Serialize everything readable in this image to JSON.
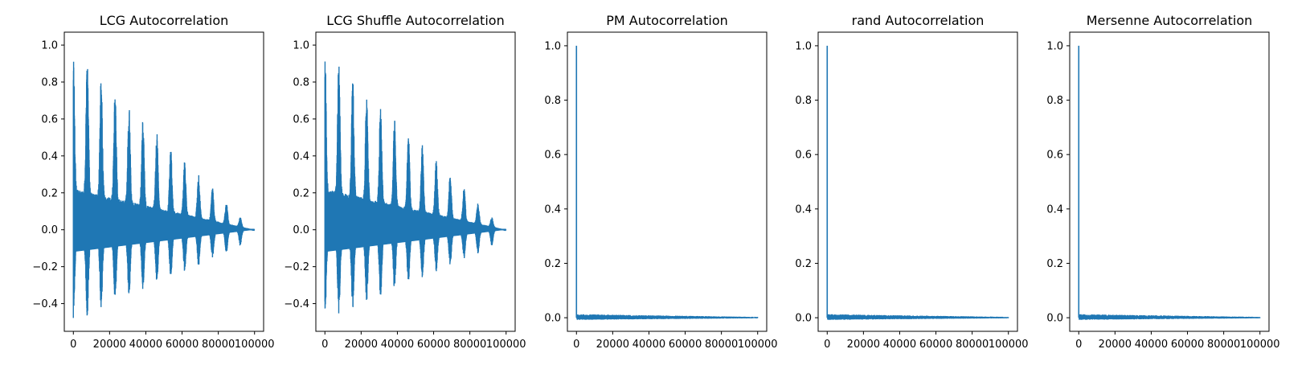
{
  "chart_data": [
    {
      "type": "line",
      "title": "LCG Autocorrelation",
      "xlabel": "",
      "ylabel": "",
      "xlim": [
        -5000,
        105000
      ],
      "ylim": [
        -0.55,
        1.07
      ],
      "xticks": [
        0,
        20000,
        40000,
        60000,
        80000,
        100000
      ],
      "xtick_labels": [
        "0",
        "20000",
        "40000",
        "60000",
        "80000",
        "100000"
      ],
      "yticks": [
        -0.4,
        -0.2,
        0.0,
        0.2,
        0.4,
        0.6,
        0.8,
        1.0
      ],
      "ytick_labels": [
        "−0.4",
        "−0.2",
        "0.0",
        "0.2",
        "0.4",
        "0.6",
        "0.8",
        "1.0"
      ],
      "series": [
        {
          "color": "#1f77b4",
          "envelope_x": [
            0,
            7700,
            15300,
            23000,
            30700,
            38300,
            46000,
            53600,
            61300,
            69000,
            76600,
            84300,
            92000,
            100000
          ],
          "upper": [
            1.0,
            0.92,
            0.84,
            0.76,
            0.69,
            0.61,
            0.53,
            0.46,
            0.38,
            0.3,
            0.23,
            0.15,
            0.07,
            0.0
          ],
          "lower": [
            -0.5,
            -0.47,
            -0.43,
            -0.4,
            -0.37,
            -0.33,
            -0.3,
            -0.27,
            -0.23,
            -0.2,
            -0.16,
            -0.13,
            -0.09,
            0.0
          ]
        }
      ]
    },
    {
      "type": "line",
      "title": "LCG Shuffle Autocorrelation",
      "xlabel": "",
      "ylabel": "",
      "xlim": [
        -5000,
        105000
      ],
      "ylim": [
        -0.55,
        1.07
      ],
      "xticks": [
        0,
        20000,
        40000,
        60000,
        80000,
        100000
      ],
      "xtick_labels": [
        "0",
        "20000",
        "40000",
        "60000",
        "80000",
        "100000"
      ],
      "yticks": [
        -0.4,
        -0.2,
        0.0,
        0.2,
        0.4,
        0.6,
        0.8,
        1.0
      ],
      "ytick_labels": [
        "−0.4",
        "−0.2",
        "0.0",
        "0.2",
        "0.4",
        "0.6",
        "0.8",
        "1.0"
      ],
      "series": [
        {
          "color": "#1f77b4",
          "envelope_x": [
            0,
            7700,
            15300,
            23000,
            30700,
            38300,
            46000,
            53600,
            61300,
            69000,
            76600,
            84300,
            92000,
            100000
          ],
          "upper": [
            1.0,
            0.92,
            0.84,
            0.76,
            0.69,
            0.61,
            0.53,
            0.46,
            0.38,
            0.3,
            0.23,
            0.15,
            0.07,
            0.0
          ],
          "lower": [
            -0.5,
            -0.47,
            -0.43,
            -0.4,
            -0.37,
            -0.33,
            -0.3,
            -0.27,
            -0.23,
            -0.2,
            -0.16,
            -0.13,
            -0.09,
            0.0
          ]
        }
      ]
    },
    {
      "type": "line",
      "title": "PM Autocorrelation",
      "xlabel": "",
      "ylabel": "",
      "xlim": [
        -5000,
        105000
      ],
      "ylim": [
        -0.05,
        1.05
      ],
      "xticks": [
        0,
        20000,
        40000,
        60000,
        80000,
        100000
      ],
      "xtick_labels": [
        "0",
        "20000",
        "40000",
        "60000",
        "80000",
        "100000"
      ],
      "yticks": [
        0.0,
        0.2,
        0.4,
        0.6,
        0.8,
        1.0
      ],
      "ytick_labels": [
        "0.0",
        "0.2",
        "0.4",
        "0.6",
        "0.8",
        "1.0"
      ],
      "series": [
        {
          "color": "#1f77b4",
          "spike": {
            "x": 0,
            "y": 1.0
          },
          "noise_x": [
            200,
            100000
          ],
          "noise_upper": [
            0.013,
            0.003
          ],
          "noise_lower": [
            -0.008,
            -0.002
          ]
        }
      ]
    },
    {
      "type": "line",
      "title": "rand Autocorrelation",
      "xlabel": "",
      "ylabel": "",
      "xlim": [
        -5000,
        105000
      ],
      "ylim": [
        -0.05,
        1.05
      ],
      "xticks": [
        0,
        20000,
        40000,
        60000,
        80000,
        100000
      ],
      "xtick_labels": [
        "0",
        "20000",
        "40000",
        "60000",
        "80000",
        "100000"
      ],
      "yticks": [
        0.0,
        0.2,
        0.4,
        0.6,
        0.8,
        1.0
      ],
      "ytick_labels": [
        "0.0",
        "0.2",
        "0.4",
        "0.6",
        "0.8",
        "1.0"
      ],
      "series": [
        {
          "color": "#1f77b4",
          "spike": {
            "x": 0,
            "y": 1.0
          },
          "noise_x": [
            200,
            100000
          ],
          "noise_upper": [
            0.013,
            0.003
          ],
          "noise_lower": [
            -0.008,
            -0.002
          ]
        }
      ]
    },
    {
      "type": "line",
      "title": "Mersenne Autocorrelation",
      "xlabel": "",
      "ylabel": "",
      "xlim": [
        -5000,
        105000
      ],
      "ylim": [
        -0.05,
        1.05
      ],
      "xticks": [
        0,
        20000,
        40000,
        60000,
        80000,
        100000
      ],
      "xtick_labels": [
        "0",
        "20000",
        "40000",
        "60000",
        "80000",
        "100000"
      ],
      "yticks": [
        0.0,
        0.2,
        0.4,
        0.6,
        0.8,
        1.0
      ],
      "ytick_labels": [
        "0.0",
        "0.2",
        "0.4",
        "0.6",
        "0.8",
        "1.0"
      ],
      "series": [
        {
          "color": "#1f77b4",
          "spike": {
            "x": 0,
            "y": 1.0
          },
          "noise_x": [
            200,
            100000
          ],
          "noise_upper": [
            0.013,
            0.003
          ],
          "noise_lower": [
            -0.008,
            -0.002
          ]
        }
      ]
    }
  ]
}
